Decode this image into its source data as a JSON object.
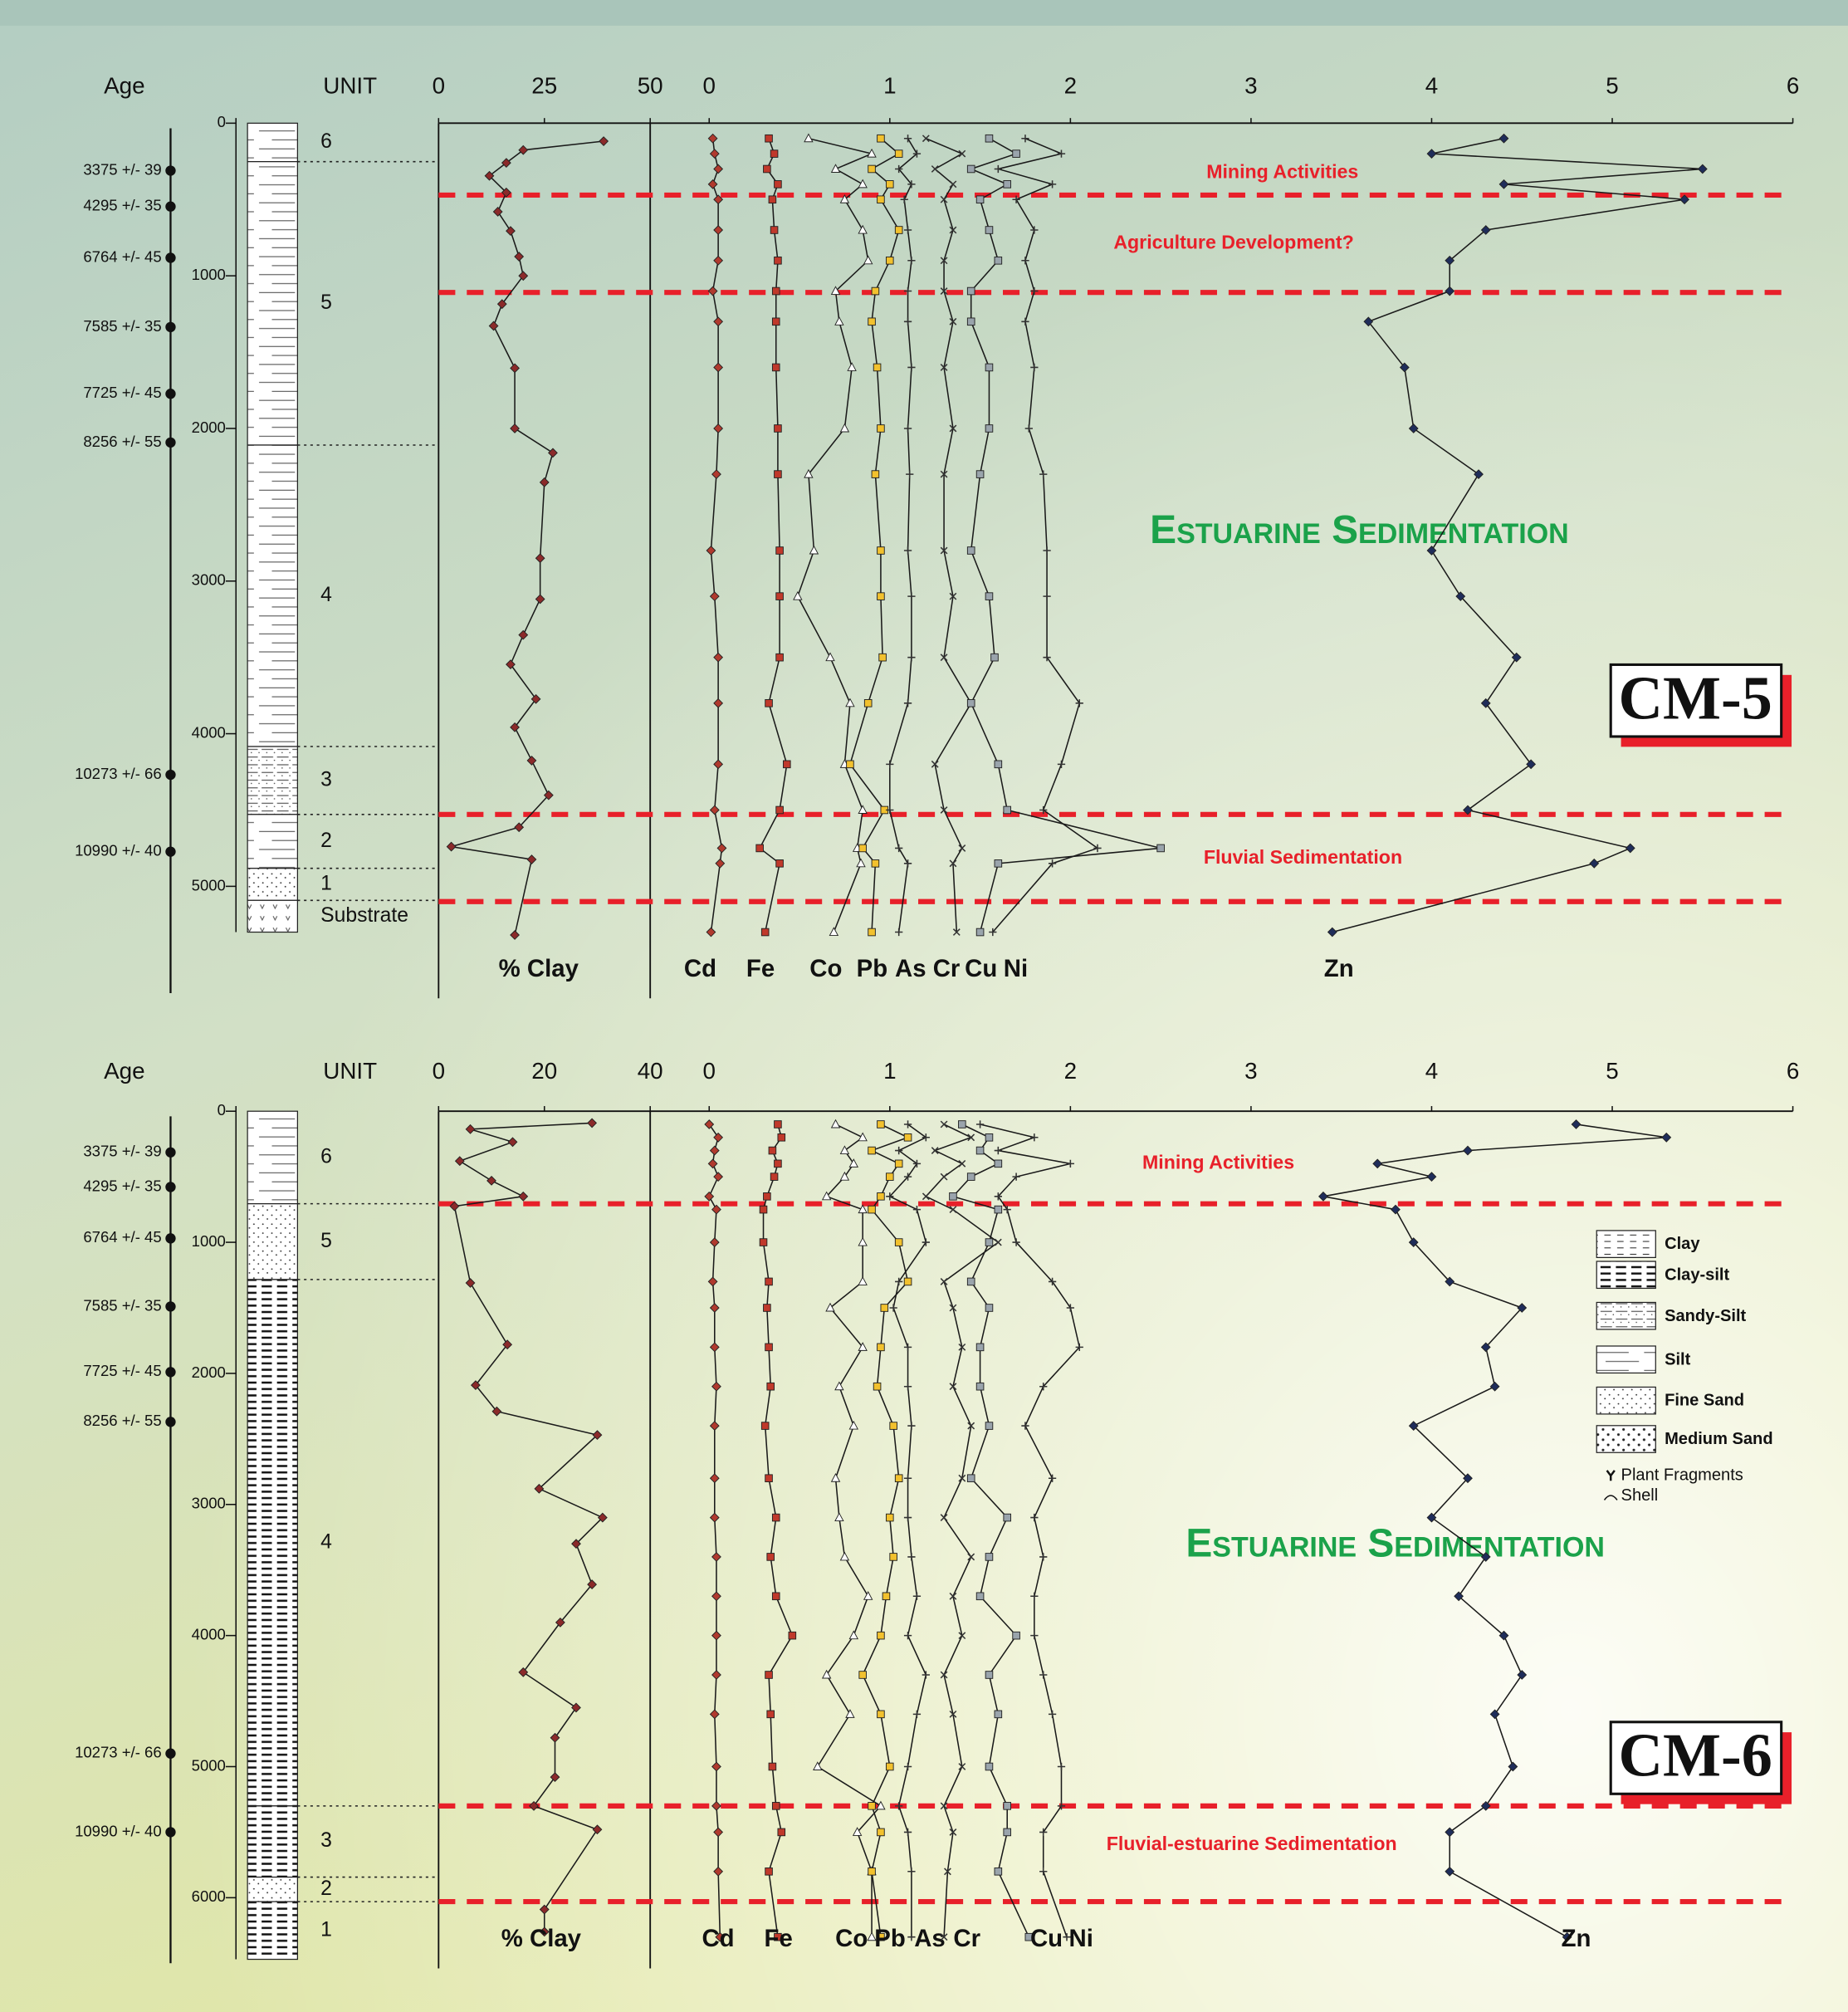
{
  "chart_data": [
    {
      "type": "depth_profile",
      "title": "CM-5",
      "age_label": "Age",
      "unit_label": "UNIT",
      "ylim": [
        0,
        5700
      ],
      "yticks": [
        0,
        1000,
        2000,
        3000,
        4000,
        5000
      ],
      "xlim": [
        0,
        6
      ],
      "xticks": [
        0,
        1,
        2,
        3,
        4,
        5,
        6
      ],
      "x2lim": [
        0,
        50
      ],
      "x2ticks": [
        0,
        25,
        50
      ],
      "ages": [
        {
          "label": "3375 +/- 39",
          "depth": 311
        },
        {
          "label": "4295 +/- 35",
          "depth": 546
        },
        {
          "label": "6764 +/- 45",
          "depth": 882
        },
        {
          "label": "7585 +/- 35",
          "depth": 1336
        },
        {
          "label": "7725 +/- 45",
          "depth": 1773
        },
        {
          "label": "8256 +/- 55",
          "depth": 2092
        },
        {
          "label": "10273 +/- 66",
          "depth": 4269
        },
        {
          "label": "10990 +/- 40",
          "depth": 4773
        }
      ],
      "units": [
        {
          "label": "6",
          "top": 0,
          "base": 252
        },
        {
          "label": "5",
          "top": 252,
          "base": 2109
        },
        {
          "label": "4",
          "top": 2109,
          "base": 4084
        },
        {
          "label": "3",
          "top": 4084,
          "base": 4529
        },
        {
          "label": "2",
          "top": 4529,
          "base": 4882
        },
        {
          "label": "1",
          "top": 4882,
          "base": 5092
        },
        {
          "label": "Substrate",
          "top": 5092,
          "base": 5300
        }
      ],
      "zone_lines": [
        471,
        1109,
        4529,
        5100
      ],
      "annotations": [
        "Mining Activities",
        "Agriculture Development?",
        "Estuarine Sedimentation",
        "Fluvial Sedimentation"
      ],
      "depth": [
        100,
        200,
        300,
        400,
        500,
        700,
        900,
        1100,
        1300,
        1600,
        2000,
        2300,
        2800,
        3100,
        3500,
        3800,
        4200,
        4500,
        4750,
        4850,
        5300
      ],
      "series": [
        {
          "name": "% Clay",
          "axis": "x2",
          "color": "#8b2a2a",
          "marker": "diamond",
          "depth": [
            118,
            176,
            260,
            345,
            454,
            580,
            706,
            874,
            1000,
            1185,
            1328,
            1605,
            2000,
            2160,
            2353,
            2850,
            3118,
            3353,
            3546,
            3773,
            3958,
            4176,
            4403,
            4613,
            4740,
            4824,
            5319
          ],
          "values": [
            39,
            20,
            16,
            12,
            16,
            14,
            17,
            19,
            20,
            15,
            13,
            18,
            18,
            27,
            25,
            24,
            24,
            20,
            17,
            23,
            18,
            22,
            26,
            19,
            3,
            22,
            18
          ]
        },
        {
          "name": "Cd",
          "color": "#b03a2e",
          "marker": "diamond",
          "values": [
            0.02,
            0.03,
            0.05,
            0.02,
            0.05,
            0.05,
            0.05,
            0.02,
            0.05,
            0.05,
            0.05,
            0.04,
            0.01,
            0.03,
            0.05,
            0.05,
            0.05,
            0.03,
            0.07,
            0.06,
            0.01
          ]
        },
        {
          "name": "Fe",
          "color": "#c0392b",
          "marker": "square",
          "values": [
            0.33,
            0.36,
            0.32,
            0.38,
            0.35,
            0.36,
            0.38,
            0.37,
            0.37,
            0.37,
            0.38,
            0.38,
            0.39,
            0.39,
            0.39,
            0.33,
            0.43,
            0.39,
            0.28,
            0.39,
            0.31
          ]
        },
        {
          "name": "Co",
          "color": "#ffffff",
          "marker": "triangle",
          "values": [
            0.55,
            0.9,
            0.7,
            0.85,
            0.75,
            0.85,
            0.88,
            0.7,
            0.72,
            0.79,
            0.75,
            0.55,
            0.58,
            0.49,
            0.67,
            0.78,
            0.75,
            0.85,
            0.82,
            0.84,
            0.69
          ]
        },
        {
          "name": "Pb",
          "color": "#f2c12e",
          "marker": "square",
          "values": [
            0.95,
            1.05,
            0.9,
            1.0,
            0.95,
            1.05,
            1.0,
            0.92,
            0.9,
            0.93,
            0.95,
            0.92,
            0.95,
            0.95,
            0.96,
            0.88,
            0.78,
            0.97,
            0.85,
            0.92,
            0.9
          ]
        },
        {
          "name": "As",
          "color": "#333333",
          "marker": "cross",
          "values": [
            1.1,
            1.15,
            1.05,
            1.12,
            1.08,
            1.1,
            1.12,
            1.1,
            1.1,
            1.12,
            1.1,
            1.11,
            1.1,
            1.12,
            1.12,
            1.1,
            1.0,
            1.0,
            1.05,
            1.1,
            1.05
          ]
        },
        {
          "name": "Cr",
          "color": "#333333",
          "marker": "x",
          "values": [
            1.2,
            1.4,
            1.25,
            1.35,
            1.3,
            1.35,
            1.3,
            1.3,
            1.35,
            1.3,
            1.35,
            1.3,
            1.3,
            1.35,
            1.3,
            1.45,
            1.25,
            1.3,
            1.4,
            1.35,
            1.37
          ]
        },
        {
          "name": "Cu",
          "color": "#9aa4ac",
          "marker": "square",
          "values": [
            1.55,
            1.7,
            1.45,
            1.65,
            1.5,
            1.55,
            1.6,
            1.45,
            1.45,
            1.55,
            1.55,
            1.5,
            1.45,
            1.55,
            1.58,
            1.45,
            1.6,
            1.65,
            2.5,
            1.6,
            1.5
          ]
        },
        {
          "name": "Ni",
          "color": "#333333",
          "marker": "cross",
          "values": [
            1.75,
            1.95,
            1.6,
            1.9,
            1.7,
            1.8,
            1.75,
            1.8,
            1.75,
            1.8,
            1.77,
            1.85,
            1.87,
            1.87,
            1.87,
            2.05,
            1.95,
            1.85,
            2.15,
            1.9,
            1.57
          ]
        },
        {
          "name": "Zn",
          "color": "#1f2d5a",
          "marker": "diamond",
          "values": [
            4.4,
            4.0,
            5.5,
            4.4,
            5.4,
            4.3,
            4.1,
            4.1,
            3.65,
            3.85,
            3.9,
            4.26,
            4.0,
            4.16,
            4.47,
            4.3,
            4.55,
            4.2,
            5.1,
            4.9,
            3.45
          ]
        }
      ]
    },
    {
      "type": "depth_profile",
      "title": "CM-6",
      "age_label": "Age",
      "unit_label": "UNIT",
      "ylim": [
        0,
        6500
      ],
      "yticks": [
        0,
        1000,
        2000,
        3000,
        4000,
        5000,
        6000
      ],
      "xlim": [
        0,
        6
      ],
      "xticks": [
        0,
        1,
        2,
        3,
        4,
        5,
        6
      ],
      "x2lim": [
        0,
        40
      ],
      "x2ticks": [
        0,
        20,
        40
      ],
      "ages": [
        {
          "label": "3375 +/- 39",
          "depth": 314
        },
        {
          "label": "4295 +/- 35",
          "depth": 578
        },
        {
          "label": "6764 +/- 45",
          "depth": 970
        },
        {
          "label": "7585 +/- 35",
          "depth": 1490
        },
        {
          "label": "7725 +/- 45",
          "depth": 1990
        },
        {
          "label": "8256 +/- 55",
          "depth": 2370
        },
        {
          "label": "10273 +/- 66",
          "depth": 4900
        },
        {
          "label": "10990 +/- 40",
          "depth": 5500
        }
      ],
      "units": [
        {
          "label": "6",
          "top": 0,
          "base": 706
        },
        {
          "label": "5",
          "top": 706,
          "base": 1284
        },
        {
          "label": "4",
          "top": 1284,
          "base": 5300
        },
        {
          "label": "3",
          "top": 5300,
          "base": 5843
        },
        {
          "label": "2",
          "top": 5843,
          "base": 6030
        },
        {
          "label": "1",
          "top": 6030,
          "base": 6470
        }
      ],
      "zone_lines": [
        706,
        5300,
        6030
      ],
      "annotations": [
        "Mining Activities",
        "Estuarine Sedimentation",
        "Fluvial-estuarine Sedimentation"
      ],
      "legend": [
        "Clay",
        "Clay-silt",
        "Sandy-Silt",
        "Silt",
        "Fine Sand",
        "Medium Sand",
        "Plant Fragments",
        "Shell"
      ],
      "depth": [
        100,
        200,
        300,
        400,
        500,
        650,
        750,
        1000,
        1300,
        1500,
        1800,
        2100,
        2400,
        2800,
        3100,
        3400,
        3700,
        4000,
        4300,
        4600,
        5000,
        5300,
        5500,
        5800,
        6300
      ],
      "series": [
        {
          "name": "% Clay",
          "axis": "x2",
          "color": "#8b2a2a",
          "marker": "diamond",
          "depth": [
            90,
            137,
            235,
            380,
            530,
            650,
            725,
            1310,
            1780,
            2090,
            2290,
            2470,
            2880,
            3100,
            3300,
            3610,
            3900,
            4280,
            4550,
            4780,
            5080,
            5300,
            5480,
            6090,
            6260
          ],
          "values": [
            29,
            6,
            14,
            4,
            10,
            16,
            3,
            6,
            13,
            7,
            11,
            30,
            19,
            31,
            26,
            29,
            23,
            16,
            26,
            22,
            22,
            18,
            30,
            20,
            20
          ]
        },
        {
          "name": "Cd",
          "color": "#b03a2e",
          "marker": "diamond",
          "values": [
            0.0,
            0.05,
            0.03,
            0.02,
            0.05,
            0.0,
            0.04,
            0.03,
            0.02,
            0.03,
            0.03,
            0.04,
            0.03,
            0.03,
            0.03,
            0.04,
            0.04,
            0.04,
            0.04,
            0.03,
            0.04,
            0.04,
            0.05,
            0.05,
            0.06
          ]
        },
        {
          "name": "Fe",
          "color": "#c0392b",
          "marker": "square",
          "values": [
            0.38,
            0.4,
            0.35,
            0.38,
            0.36,
            0.32,
            0.3,
            0.3,
            0.33,
            0.32,
            0.33,
            0.34,
            0.31,
            0.33,
            0.37,
            0.34,
            0.37,
            0.46,
            0.33,
            0.34,
            0.35,
            0.37,
            0.4,
            0.33,
            0.38
          ]
        },
        {
          "name": "Co",
          "color": "#ffffff",
          "marker": "triangle",
          "values": [
            0.7,
            0.85,
            0.75,
            0.8,
            0.75,
            0.65,
            0.85,
            0.85,
            0.85,
            0.67,
            0.85,
            0.72,
            0.8,
            0.7,
            0.72,
            0.75,
            0.88,
            0.8,
            0.65,
            0.78,
            0.6,
            0.95,
            0.82,
            0.9,
            0.9
          ]
        },
        {
          "name": "Pb",
          "color": "#f2c12e",
          "marker": "square",
          "values": [
            0.95,
            1.1,
            0.9,
            1.05,
            1.0,
            0.95,
            0.9,
            1.05,
            1.1,
            0.97,
            0.95,
            0.93,
            1.02,
            1.05,
            1.0,
            1.02,
            0.98,
            0.95,
            0.85,
            0.95,
            1.0,
            0.9,
            0.95,
            0.9,
            0.95
          ]
        },
        {
          "name": "As",
          "color": "#333333",
          "marker": "cross",
          "values": [
            1.1,
            1.2,
            1.05,
            1.15,
            1.1,
            1.0,
            1.15,
            1.2,
            1.05,
            1.02,
            1.1,
            1.1,
            1.12,
            1.1,
            1.1,
            1.12,
            1.15,
            1.1,
            1.2,
            1.15,
            1.1,
            1.05,
            1.1,
            1.12,
            1.12
          ]
        },
        {
          "name": "Cr",
          "color": "#333333",
          "marker": "x",
          "values": [
            1.3,
            1.45,
            1.25,
            1.4,
            1.3,
            1.2,
            1.35,
            1.6,
            1.3,
            1.35,
            1.4,
            1.35,
            1.45,
            1.4,
            1.3,
            1.45,
            1.35,
            1.4,
            1.3,
            1.35,
            1.4,
            1.3,
            1.35,
            1.32,
            1.3
          ]
        },
        {
          "name": "Cu",
          "color": "#9aa4ac",
          "marker": "square",
          "values": [
            1.4,
            1.55,
            1.5,
            1.6,
            1.45,
            1.35,
            1.6,
            1.55,
            1.45,
            1.55,
            1.5,
            1.5,
            1.55,
            1.45,
            1.65,
            1.55,
            1.5,
            1.7,
            1.55,
            1.6,
            1.55,
            1.65,
            1.65,
            1.6,
            1.77
          ]
        },
        {
          "name": "Ni",
          "color": "#333333",
          "marker": "cross",
          "values": [
            1.5,
            1.8,
            1.6,
            2.0,
            1.7,
            1.6,
            1.65,
            1.7,
            1.9,
            2.0,
            2.05,
            1.85,
            1.75,
            1.9,
            1.8,
            1.85,
            1.8,
            1.8,
            1.85,
            1.9,
            1.95,
            1.95,
            1.85,
            1.85,
            1.98
          ]
        },
        {
          "name": "Zn",
          "color": "#1f2d5a",
          "marker": "diamond",
          "values": [
            4.8,
            5.3,
            4.2,
            3.7,
            4.0,
            3.4,
            3.8,
            3.9,
            4.1,
            4.5,
            4.3,
            4.35,
            3.9,
            4.2,
            4.0,
            4.3,
            4.15,
            4.4,
            4.5,
            4.35,
            4.45,
            4.3,
            4.1,
            4.1,
            4.75
          ]
        }
      ]
    }
  ]
}
